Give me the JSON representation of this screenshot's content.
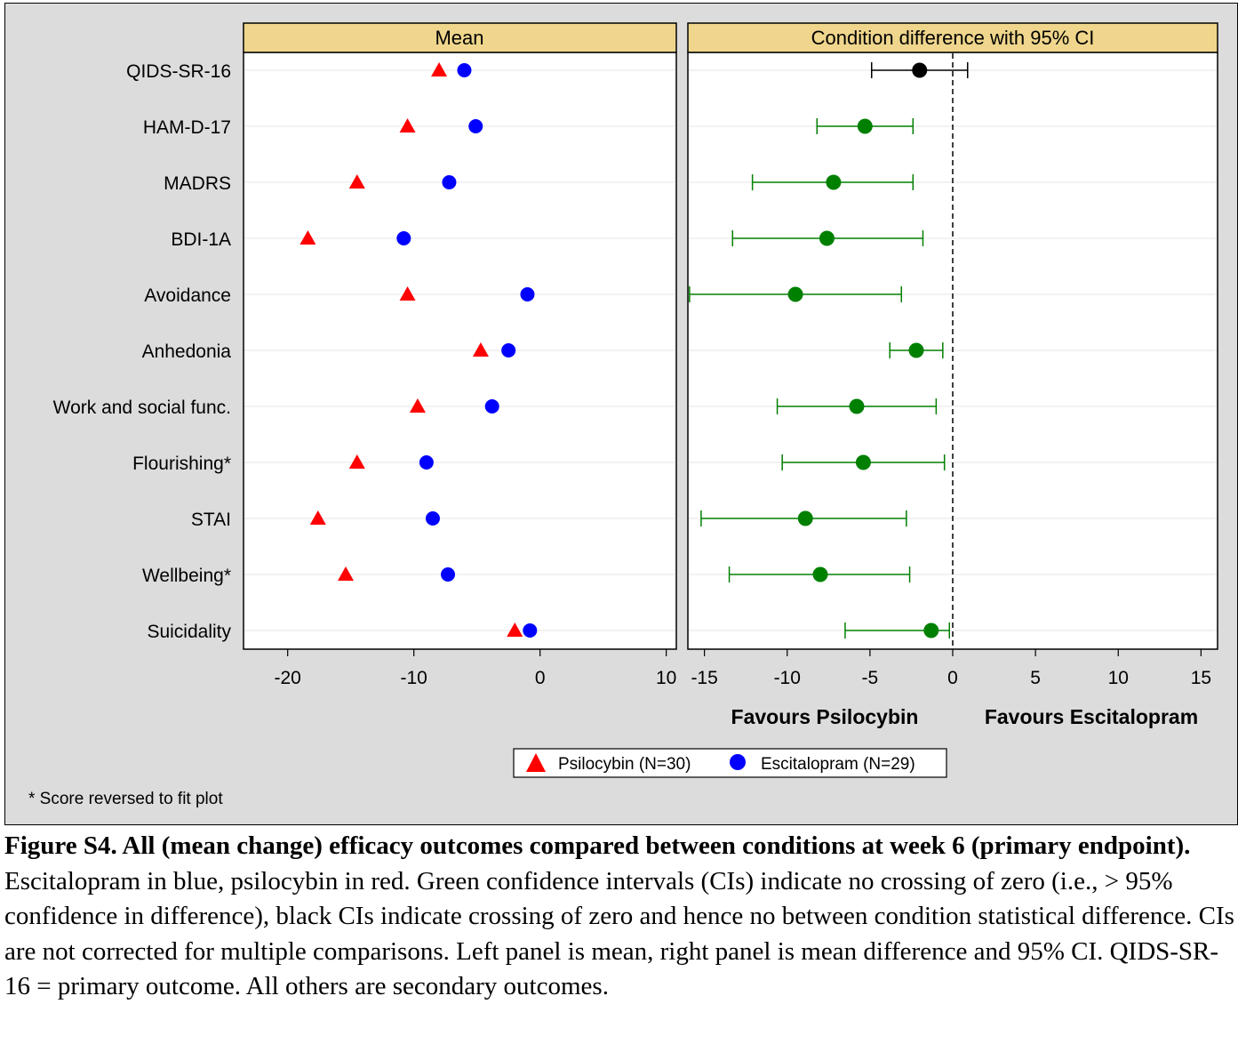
{
  "chart_data": [
    {
      "type": "scatter",
      "title": "Mean",
      "categories": [
        "QIDS-SR-16",
        "HAM-D-17",
        "MADRS",
        "BDI-1A",
        "Avoidance",
        "Anhedonia",
        "Work and social func.",
        "Flourishing*",
        "STAI",
        "Wellbeing*",
        "Suicidality"
      ],
      "xlim": [
        -23.5,
        10.8
      ],
      "xticks": [
        -20,
        -10,
        0,
        10
      ],
      "grid": true,
      "series": [
        {
          "name": "Psilocybin (N=30)",
          "marker": "triangle",
          "color": "#ff0000",
          "values": [
            -8.0,
            -10.5,
            -14.5,
            -18.4,
            -10.5,
            -4.7,
            -9.7,
            -14.5,
            -17.6,
            -15.4,
            -2.0
          ]
        },
        {
          "name": "Escitalopram (N=29)",
          "marker": "circle",
          "color": "#0000ff",
          "values": [
            -6.0,
            -5.1,
            -7.2,
            -10.8,
            -1.0,
            -2.5,
            -3.8,
            -9.0,
            -8.5,
            -7.3,
            -0.8
          ]
        }
      ]
    },
    {
      "type": "scatter",
      "title": "Condition difference with 95% CI",
      "categories": [
        "QIDS-SR-16",
        "HAM-D-17",
        "MADRS",
        "BDI-1A",
        "Avoidance",
        "Anhedonia",
        "Work and social func.",
        "Flourishing*",
        "STAI",
        "Wellbeing*",
        "Suicidality"
      ],
      "xlim": [
        -16,
        16
      ],
      "xticks": [
        -15,
        -10,
        -5,
        0,
        5,
        10,
        15
      ],
      "reference_line": 0,
      "grid": true,
      "estimates": [
        -2.0,
        -5.3,
        -7.2,
        -7.6,
        -9.5,
        -2.2,
        -5.8,
        -5.4,
        -8.9,
        -8.0,
        -1.3
      ],
      "ci_low": [
        -4.9,
        -8.2,
        -12.1,
        -13.3,
        -15.9,
        -3.8,
        -10.6,
        -10.3,
        -15.2,
        -13.5,
        -6.5
      ],
      "ci_high": [
        0.9,
        -2.4,
        -2.4,
        -1.8,
        -3.1,
        -0.6,
        -1.0,
        -0.5,
        -2.8,
        -2.6,
        -0.2
      ],
      "colors": [
        "#000000",
        "#008000",
        "#008000",
        "#008000",
        "#008000",
        "#008000",
        "#008000",
        "#008000",
        "#008000",
        "#008000",
        "#008000"
      ],
      "xlabel_left": "Favours Psilocybin",
      "xlabel_right": "Favours Escitalopram"
    }
  ],
  "legend": {
    "items": [
      {
        "label": "Psilocybin (N=30)",
        "marker": "triangle",
        "color": "#ff0000"
      },
      {
        "label": "Escitalopram (N=29)",
        "marker": "circle",
        "color": "#0000ff"
      }
    ]
  },
  "footnote": "* Score reversed to fit plot",
  "caption": {
    "bold": "Figure S4. All (mean change) efficacy outcomes compared between conditions at week 6 (primary endpoint).",
    "text": " Escitalopram in blue, psilocybin in red. Green confidence intervals (CIs) indicate no crossing of zero (i.e., > 95% confidence in difference), black CIs indicate crossing of zero and hence no between condition statistical difference. CIs are not corrected for multiple comparisons. Left panel is mean, right panel is mean difference and 95% CI. QIDS-SR-16 = primary outcome. All others are secondary outcomes."
  }
}
